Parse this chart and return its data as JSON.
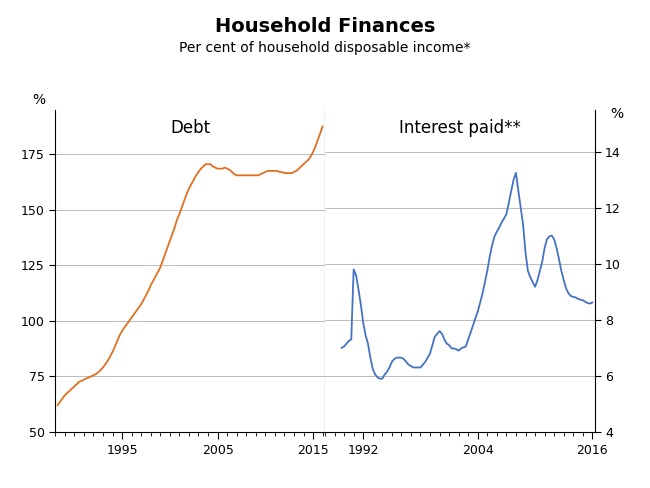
{
  "title": "Household Finances",
  "subtitle": "Per cent of household disposable income*",
  "left_label": "Debt",
  "right_label": "Interest paid**",
  "left_ylabel": "%",
  "right_ylabel": "%",
  "left_ylim": [
    50,
    195
  ],
  "right_ylim": [
    4,
    15.5
  ],
  "left_yticks": [
    50,
    75,
    100,
    125,
    150,
    175
  ],
  "right_yticks": [
    4,
    6,
    8,
    10,
    12,
    14
  ],
  "orange_color": "#E07020",
  "blue_color": "#4472C4",
  "bg_color": "#ffffff",
  "grid_color": "#bbbbbb",
  "debt_data": [
    [
      1988.25,
      62.0
    ],
    [
      1988.5,
      63.5
    ],
    [
      1988.75,
      65.0
    ],
    [
      1989.0,
      66.5
    ],
    [
      1989.25,
      67.5
    ],
    [
      1989.5,
      68.5
    ],
    [
      1989.75,
      69.5
    ],
    [
      1990.0,
      70.5
    ],
    [
      1990.25,
      71.5
    ],
    [
      1990.5,
      72.5
    ],
    [
      1990.75,
      73.0
    ],
    [
      1991.0,
      73.5
    ],
    [
      1991.25,
      74.0
    ],
    [
      1991.5,
      74.5
    ],
    [
      1991.75,
      75.0
    ],
    [
      1992.0,
      75.5
    ],
    [
      1992.25,
      76.0
    ],
    [
      1992.5,
      76.8
    ],
    [
      1992.75,
      77.8
    ],
    [
      1993.0,
      79.0
    ],
    [
      1993.25,
      80.5
    ],
    [
      1993.5,
      82.0
    ],
    [
      1993.75,
      84.0
    ],
    [
      1994.0,
      86.0
    ],
    [
      1994.25,
      88.5
    ],
    [
      1994.5,
      91.0
    ],
    [
      1994.75,
      93.5
    ],
    [
      1995.0,
      95.5
    ],
    [
      1995.25,
      97.0
    ],
    [
      1995.5,
      98.5
    ],
    [
      1995.75,
      100.0
    ],
    [
      1996.0,
      101.5
    ],
    [
      1996.25,
      103.0
    ],
    [
      1996.5,
      104.5
    ],
    [
      1996.75,
      106.0
    ],
    [
      1997.0,
      107.5
    ],
    [
      1997.25,
      109.5
    ],
    [
      1997.5,
      111.5
    ],
    [
      1997.75,
      113.5
    ],
    [
      1998.0,
      116.0
    ],
    [
      1998.25,
      118.0
    ],
    [
      1998.5,
      120.0
    ],
    [
      1998.75,
      122.0
    ],
    [
      1999.0,
      124.0
    ],
    [
      1999.25,
      127.0
    ],
    [
      1999.5,
      130.0
    ],
    [
      1999.75,
      133.0
    ],
    [
      2000.0,
      136.0
    ],
    [
      2000.25,
      139.0
    ],
    [
      2000.5,
      142.0
    ],
    [
      2000.75,
      145.5
    ],
    [
      2001.0,
      148.0
    ],
    [
      2001.25,
      151.0
    ],
    [
      2001.5,
      154.0
    ],
    [
      2001.75,
      157.0
    ],
    [
      2002.0,
      159.5
    ],
    [
      2002.25,
      161.5
    ],
    [
      2002.5,
      163.5
    ],
    [
      2002.75,
      165.5
    ],
    [
      2003.0,
      167.0
    ],
    [
      2003.25,
      168.5
    ],
    [
      2003.5,
      169.5
    ],
    [
      2003.75,
      170.5
    ],
    [
      2004.0,
      170.5
    ],
    [
      2004.25,
      170.5
    ],
    [
      2004.5,
      169.5
    ],
    [
      2004.75,
      169.0
    ],
    [
      2005.0,
      168.5
    ],
    [
      2005.25,
      168.5
    ],
    [
      2005.5,
      168.5
    ],
    [
      2005.75,
      169.0
    ],
    [
      2006.0,
      168.5
    ],
    [
      2006.25,
      168.0
    ],
    [
      2006.5,
      167.0
    ],
    [
      2006.75,
      166.0
    ],
    [
      2007.0,
      165.5
    ],
    [
      2007.25,
      165.5
    ],
    [
      2007.5,
      165.5
    ],
    [
      2007.75,
      165.5
    ],
    [
      2008.0,
      165.5
    ],
    [
      2008.25,
      165.5
    ],
    [
      2008.5,
      165.5
    ],
    [
      2008.75,
      165.5
    ],
    [
      2009.0,
      165.5
    ],
    [
      2009.25,
      165.5
    ],
    [
      2009.5,
      166.0
    ],
    [
      2009.75,
      166.5
    ],
    [
      2010.0,
      167.0
    ],
    [
      2010.25,
      167.5
    ],
    [
      2010.5,
      167.5
    ],
    [
      2010.75,
      167.5
    ],
    [
      2011.0,
      167.5
    ],
    [
      2011.25,
      167.5
    ],
    [
      2011.5,
      167.0
    ],
    [
      2011.75,
      167.0
    ],
    [
      2012.0,
      166.5
    ],
    [
      2012.25,
      166.5
    ],
    [
      2012.5,
      166.5
    ],
    [
      2012.75,
      166.5
    ],
    [
      2013.0,
      167.0
    ],
    [
      2013.25,
      167.5
    ],
    [
      2013.5,
      168.5
    ],
    [
      2013.75,
      169.5
    ],
    [
      2014.0,
      170.5
    ],
    [
      2014.25,
      171.5
    ],
    [
      2014.5,
      172.5
    ],
    [
      2014.75,
      174.0
    ],
    [
      2015.0,
      176.0
    ],
    [
      2015.25,
      178.5
    ],
    [
      2015.5,
      181.5
    ],
    [
      2015.75,
      184.5
    ],
    [
      2016.0,
      187.5
    ]
  ],
  "interest_data": [
    [
      1989.75,
      7.0
    ],
    [
      1990.0,
      7.05
    ],
    [
      1990.25,
      7.15
    ],
    [
      1990.5,
      7.25
    ],
    [
      1990.75,
      7.3
    ],
    [
      1991.0,
      9.8
    ],
    [
      1991.25,
      9.6
    ],
    [
      1991.5,
      9.1
    ],
    [
      1991.75,
      8.55
    ],
    [
      1992.0,
      7.9
    ],
    [
      1992.25,
      7.45
    ],
    [
      1992.5,
      7.15
    ],
    [
      1992.75,
      6.65
    ],
    [
      1993.0,
      6.25
    ],
    [
      1993.25,
      6.05
    ],
    [
      1993.5,
      5.95
    ],
    [
      1993.75,
      5.9
    ],
    [
      1994.0,
      5.9
    ],
    [
      1994.25,
      6.05
    ],
    [
      1994.5,
      6.15
    ],
    [
      1994.75,
      6.3
    ],
    [
      1995.0,
      6.5
    ],
    [
      1995.25,
      6.6
    ],
    [
      1995.5,
      6.65
    ],
    [
      1995.75,
      6.65
    ],
    [
      1996.0,
      6.65
    ],
    [
      1996.25,
      6.6
    ],
    [
      1996.5,
      6.5
    ],
    [
      1996.75,
      6.4
    ],
    [
      1997.0,
      6.35
    ],
    [
      1997.25,
      6.3
    ],
    [
      1997.5,
      6.3
    ],
    [
      1997.75,
      6.3
    ],
    [
      1998.0,
      6.3
    ],
    [
      1998.25,
      6.4
    ],
    [
      1998.5,
      6.5
    ],
    [
      1998.75,
      6.65
    ],
    [
      1999.0,
      6.8
    ],
    [
      1999.25,
      7.1
    ],
    [
      1999.5,
      7.4
    ],
    [
      1999.75,
      7.5
    ],
    [
      2000.0,
      7.6
    ],
    [
      2000.25,
      7.5
    ],
    [
      2000.5,
      7.3
    ],
    [
      2000.75,
      7.15
    ],
    [
      2001.0,
      7.1
    ],
    [
      2001.25,
      6.98
    ],
    [
      2001.5,
      6.98
    ],
    [
      2001.75,
      6.95
    ],
    [
      2002.0,
      6.9
    ],
    [
      2002.25,
      6.98
    ],
    [
      2002.5,
      7.02
    ],
    [
      2002.75,
      7.05
    ],
    [
      2003.0,
      7.3
    ],
    [
      2003.25,
      7.55
    ],
    [
      2003.5,
      7.8
    ],
    [
      2003.75,
      8.05
    ],
    [
      2004.0,
      8.3
    ],
    [
      2004.25,
      8.62
    ],
    [
      2004.5,
      8.95
    ],
    [
      2004.75,
      9.35
    ],
    [
      2005.0,
      9.76
    ],
    [
      2005.25,
      10.26
    ],
    [
      2005.5,
      10.66
    ],
    [
      2005.75,
      10.98
    ],
    [
      2006.0,
      11.15
    ],
    [
      2006.25,
      11.3
    ],
    [
      2006.5,
      11.48
    ],
    [
      2006.75,
      11.62
    ],
    [
      2007.0,
      11.78
    ],
    [
      2007.25,
      12.18
    ],
    [
      2007.5,
      12.6
    ],
    [
      2007.75,
      13.0
    ],
    [
      2008.0,
      13.25
    ],
    [
      2008.25,
      12.6
    ],
    [
      2008.5,
      12.0
    ],
    [
      2008.75,
      11.38
    ],
    [
      2009.0,
      10.4
    ],
    [
      2009.25,
      9.75
    ],
    [
      2009.5,
      9.52
    ],
    [
      2009.75,
      9.35
    ],
    [
      2010.0,
      9.18
    ],
    [
      2010.25,
      9.42
    ],
    [
      2010.5,
      9.75
    ],
    [
      2010.75,
      10.08
    ],
    [
      2011.0,
      10.57
    ],
    [
      2011.25,
      10.88
    ],
    [
      2011.5,
      10.98
    ],
    [
      2011.75,
      11.01
    ],
    [
      2012.0,
      10.88
    ],
    [
      2012.25,
      10.57
    ],
    [
      2012.5,
      10.18
    ],
    [
      2012.75,
      9.75
    ],
    [
      2013.0,
      9.42
    ],
    [
      2013.25,
      9.12
    ],
    [
      2013.5,
      8.95
    ],
    [
      2013.75,
      8.85
    ],
    [
      2014.0,
      8.82
    ],
    [
      2014.25,
      8.8
    ],
    [
      2014.5,
      8.75
    ],
    [
      2014.75,
      8.72
    ],
    [
      2015.0,
      8.7
    ],
    [
      2015.25,
      8.65
    ],
    [
      2015.5,
      8.6
    ],
    [
      2015.75,
      8.58
    ],
    [
      2016.0,
      8.62
    ]
  ]
}
